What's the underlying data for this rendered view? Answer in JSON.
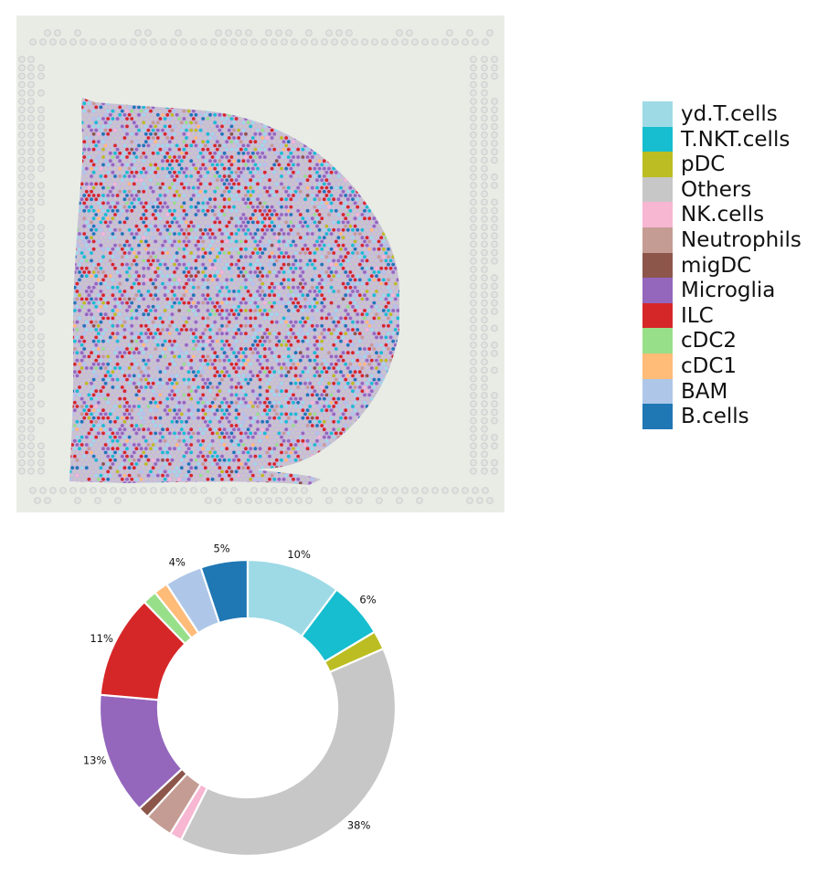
{
  "chart_data": [
    {
      "type": "heatmap",
      "description": "spatial",
      "colors": {
        "background": "#e8ece5",
        "fiducial": "#cfd1d0",
        "tissue_base": "#c9b8df"
      },
      "spot_mix": [
        {
          "name": "yd.T.cells",
          "weight": 10
        },
        {
          "name": "T.NKT.cells",
          "weight": 6
        },
        {
          "name": "pDC",
          "weight": 2
        },
        {
          "name": "Others",
          "weight": 38
        },
        {
          "name": "NK.cells",
          "weight": 1
        },
        {
          "name": "Neutrophils",
          "weight": 3
        },
        {
          "name": "migDC",
          "weight": 1
        },
        {
          "name": "Microglia",
          "weight": 13
        },
        {
          "name": "ILC",
          "weight": 11
        },
        {
          "name": "cDC2",
          "weight": 1.5
        },
        {
          "name": "cDC1",
          "weight": 1.5
        },
        {
          "name": "BAM",
          "weight": 4
        },
        {
          "name": "B.cells",
          "weight": 5
        }
      ]
    },
    {
      "type": "pie",
      "donut": true,
      "slices": [
        {
          "name": "yd.T.cells",
          "value": 10,
          "label": "10%",
          "color": "#9edae5"
        },
        {
          "name": "T.NKT.cells",
          "value": 6,
          "label": "6%",
          "color": "#17becf"
        },
        {
          "name": "pDC",
          "value": 2,
          "label": "",
          "color": "#bcbd22"
        },
        {
          "name": "Others",
          "value": 38,
          "label": "38%",
          "color": "#c7c7c7"
        },
        {
          "name": "NK.cells",
          "value": 1.3,
          "label": "",
          "color": "#f7b6d2"
        },
        {
          "name": "Neutrophils",
          "value": 3,
          "label": "",
          "color": "#c49c94"
        },
        {
          "name": "migDC",
          "value": 1.2,
          "label": "",
          "color": "#8c564b"
        },
        {
          "name": "Microglia",
          "value": 13,
          "label": "13%",
          "color": "#9467bd"
        },
        {
          "name": "ILC",
          "value": 11,
          "label": "11%",
          "color": "#d62728"
        },
        {
          "name": "cDC2",
          "value": 1.5,
          "label": "",
          "color": "#98df8a"
        },
        {
          "name": "cDC1",
          "value": 1.5,
          "label": "",
          "color": "#ffbb78"
        },
        {
          "name": "BAM",
          "value": 4,
          "label": "4%",
          "color": "#aec7e8"
        },
        {
          "name": "B.cells",
          "value": 5,
          "label": "5%",
          "color": "#1f77b4"
        }
      ]
    }
  ],
  "legend": {
    "placement": "right",
    "items": [
      {
        "label": "yd.T.cells",
        "color": "#9edae5"
      },
      {
        "label": "T.NKT.cells",
        "color": "#17becf"
      },
      {
        "label": "pDC",
        "color": "#bcbd22"
      },
      {
        "label": "Others",
        "color": "#c7c7c7"
      },
      {
        "label": "NK.cells",
        "color": "#f7b6d2"
      },
      {
        "label": "Neutrophils",
        "color": "#c49c94"
      },
      {
        "label": "migDC",
        "color": "#8c564b"
      },
      {
        "label": "Microglia",
        "color": "#9467bd"
      },
      {
        "label": "ILC",
        "color": "#d62728"
      },
      {
        "label": "cDC2",
        "color": "#98df8a"
      },
      {
        "label": "cDC1",
        "color": "#ffbb78"
      },
      {
        "label": "BAM",
        "color": "#aec7e8"
      },
      {
        "label": "B.cells",
        "color": "#1f77b4"
      }
    ]
  }
}
